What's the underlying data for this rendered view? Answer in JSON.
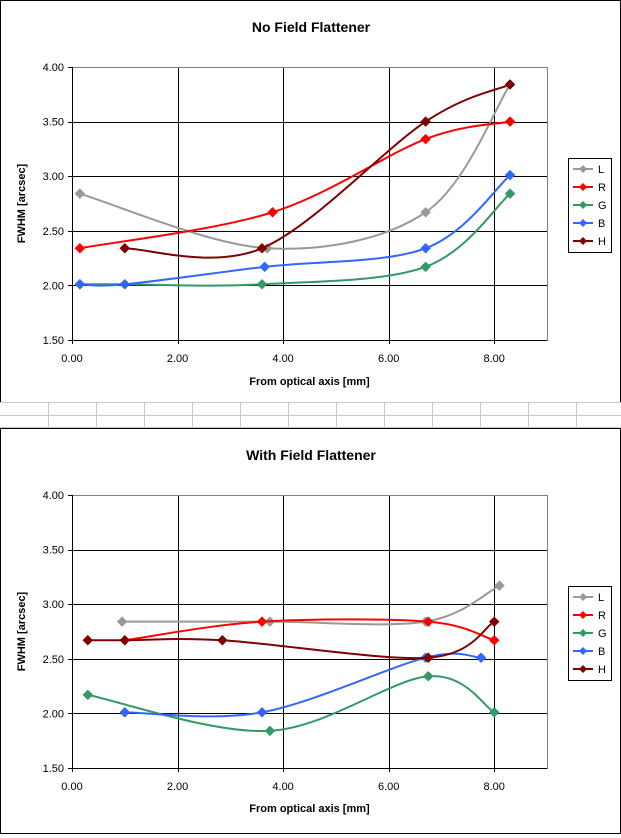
{
  "chart_data": [
    {
      "type": "line",
      "title": "No Field Flattener",
      "xlabel": "From optical axis [mm]",
      "ylabel": "FWHM [arcsec]",
      "xlim": [
        0,
        9
      ],
      "ylim": [
        1.5,
        4.0
      ],
      "xticks": [
        "0.00",
        "2.00",
        "4.00",
        "6.00",
        "8.00"
      ],
      "yticks": [
        "1.50",
        "2.00",
        "2.50",
        "3.00",
        "3.50",
        "4.00"
      ],
      "grid": true,
      "smooth": true,
      "legend_position": "right",
      "series": [
        {
          "name": "L",
          "color": "#999999",
          "points": [
            [
              0.15,
              2.84
            ],
            [
              3.7,
              2.34
            ],
            [
              6.7,
              2.67
            ],
            [
              8.3,
              3.84
            ]
          ]
        },
        {
          "name": "R",
          "color": "#ff0000",
          "points": [
            [
              0.15,
              2.34
            ],
            [
              3.8,
              2.67
            ],
            [
              6.7,
              3.34
            ],
            [
              8.3,
              3.5
            ]
          ]
        },
        {
          "name": "G",
          "color": "#339966",
          "points": [
            [
              0.15,
              2.01
            ],
            [
              1.0,
              2.01
            ],
            [
              3.6,
              2.01
            ],
            [
              6.7,
              2.17
            ],
            [
              8.3,
              2.84
            ]
          ]
        },
        {
          "name": "B",
          "color": "#3366ff",
          "points": [
            [
              0.15,
              2.01
            ],
            [
              1.0,
              2.01
            ],
            [
              3.65,
              2.17
            ],
            [
              6.7,
              2.34
            ],
            [
              8.3,
              3.01
            ]
          ]
        },
        {
          "name": "H",
          "color": "#800000",
          "points": [
            [
              1.0,
              2.34
            ],
            [
              3.6,
              2.34
            ],
            [
              6.7,
              3.5
            ],
            [
              8.3,
              3.84
            ]
          ]
        }
      ]
    },
    {
      "type": "line",
      "title": "With Field Flattener",
      "xlabel": "From optical axis [mm]",
      "ylabel": "FWHM [arcsec]",
      "xlim": [
        0,
        9
      ],
      "ylim": [
        1.5,
        4.0
      ],
      "xticks": [
        "0.00",
        "2.00",
        "4.00",
        "6.00",
        "8.00"
      ],
      "yticks": [
        "1.50",
        "2.00",
        "2.50",
        "3.00",
        "3.50",
        "4.00"
      ],
      "grid": true,
      "smooth": true,
      "legend_position": "right",
      "series": [
        {
          "name": "L",
          "color": "#999999",
          "points": [
            [
              0.95,
              2.84
            ],
            [
              3.75,
              2.84
            ],
            [
              6.7,
              2.84
            ],
            [
              8.1,
              3.17
            ]
          ]
        },
        {
          "name": "R",
          "color": "#ff0000",
          "points": [
            [
              1.0,
              2.67
            ],
            [
              3.6,
              2.84
            ],
            [
              6.75,
              2.84
            ],
            [
              8.0,
              2.67
            ]
          ]
        },
        {
          "name": "G",
          "color": "#339966",
          "points": [
            [
              0.3,
              2.17
            ],
            [
              3.75,
              1.84
            ],
            [
              6.75,
              2.34
            ],
            [
              8.0,
              2.01
            ]
          ]
        },
        {
          "name": "B",
          "color": "#3366ff",
          "points": [
            [
              1.0,
              2.01
            ],
            [
              3.6,
              2.01
            ],
            [
              6.7,
              2.51
            ],
            [
              7.75,
              2.51
            ]
          ]
        },
        {
          "name": "H",
          "color": "#800000",
          "points": [
            [
              0.3,
              2.67
            ],
            [
              1.0,
              2.67
            ],
            [
              2.85,
              2.67
            ],
            [
              6.75,
              2.51
            ],
            [
              8.0,
              2.84
            ]
          ]
        }
      ]
    }
  ]
}
